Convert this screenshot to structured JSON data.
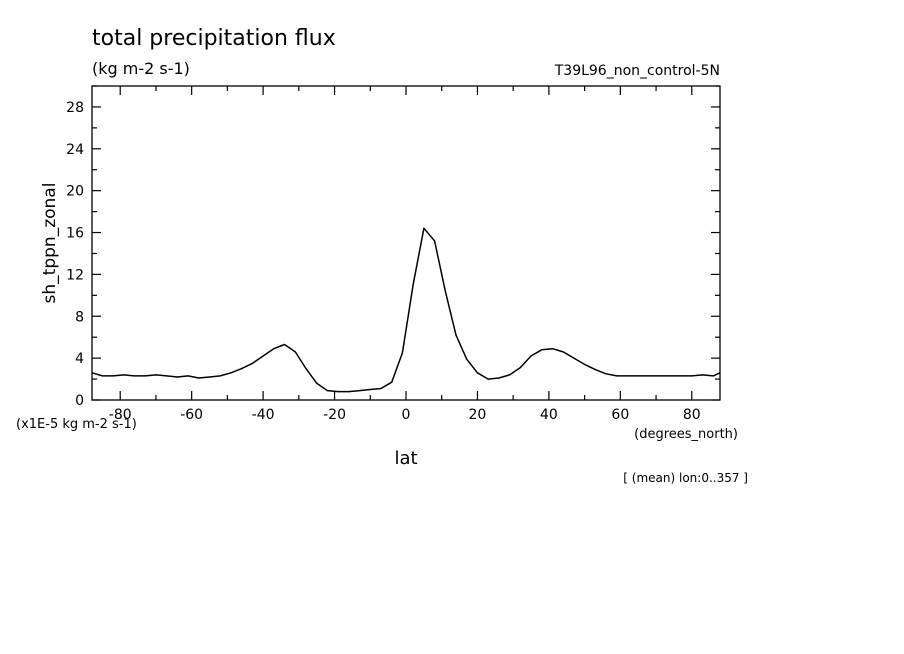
{
  "chart_data": {
    "type": "line",
    "title": "total precipitation flux",
    "units": "(kg m-2 s-1)",
    "run": "T39L96_non_control-5N",
    "xlabel": "lat",
    "xunits": "(degrees_north)",
    "ylabel": "sh_tppn_zonal",
    "yscale_label": "(x1E-5 kg m-2 s-1)",
    "footer": "[ (mean) lon:0..357 ]",
    "xlim": [
      -87.9,
      87.9
    ],
    "ylim": [
      0,
      30
    ],
    "x_ticks_major": [
      -80,
      -60,
      -40,
      -20,
      0,
      20,
      40,
      60,
      80
    ],
    "x_ticks_minor": [
      -70,
      -50,
      -30,
      -10,
      10,
      30,
      50,
      70
    ],
    "x_tick_labels": [
      "-80",
      "-60",
      "-40",
      "-20",
      "0",
      "20",
      "40",
      "60",
      "80"
    ],
    "y_ticks_major": [
      0,
      4,
      8,
      12,
      16,
      20,
      24,
      28
    ],
    "y_ticks_minor": [
      2,
      6,
      10,
      14,
      18,
      22,
      26,
      30
    ],
    "y_tick_labels": [
      "0",
      "4",
      "8",
      "12",
      "16",
      "20",
      "24",
      "28"
    ],
    "grid": false,
    "series": [
      {
        "color": "#000000",
        "x": [
          -87.9,
          -85,
          -82,
          -79,
          -76,
          -73,
          -70,
          -67,
          -64,
          -61,
          -58,
          -55,
          -52,
          -49,
          -46,
          -43,
          -40,
          -37,
          -34,
          -31,
          -28,
          -25,
          -22,
          -19,
          -16,
          -13,
          -10,
          -7,
          -4,
          -1,
          2,
          5,
          8,
          11,
          14,
          17,
          20,
          23,
          26,
          29,
          32,
          35,
          38,
          41,
          44,
          47,
          50,
          53,
          56,
          59,
          62,
          65,
          68,
          71,
          74,
          77,
          80,
          83,
          86,
          87.9
        ],
        "values": [
          2.6,
          2.3,
          2.3,
          2.4,
          2.3,
          2.3,
          2.4,
          2.3,
          2.2,
          2.3,
          2.1,
          2.2,
          2.3,
          2.6,
          3.0,
          3.5,
          4.2,
          4.9,
          5.3,
          4.6,
          3.0,
          1.6,
          0.9,
          0.8,
          0.8,
          0.9,
          1.0,
          1.1,
          1.7,
          4.5,
          11.0,
          16.4,
          15.2,
          10.4,
          6.2,
          3.9,
          2.6,
          2.0,
          2.1,
          2.4,
          3.1,
          4.2,
          4.8,
          4.9,
          4.6,
          4.0,
          3.4,
          2.9,
          2.5,
          2.3,
          2.3,
          2.3,
          2.3,
          2.3,
          2.3,
          2.3,
          2.3,
          2.4,
          2.3,
          2.6
        ]
      }
    ]
  }
}
